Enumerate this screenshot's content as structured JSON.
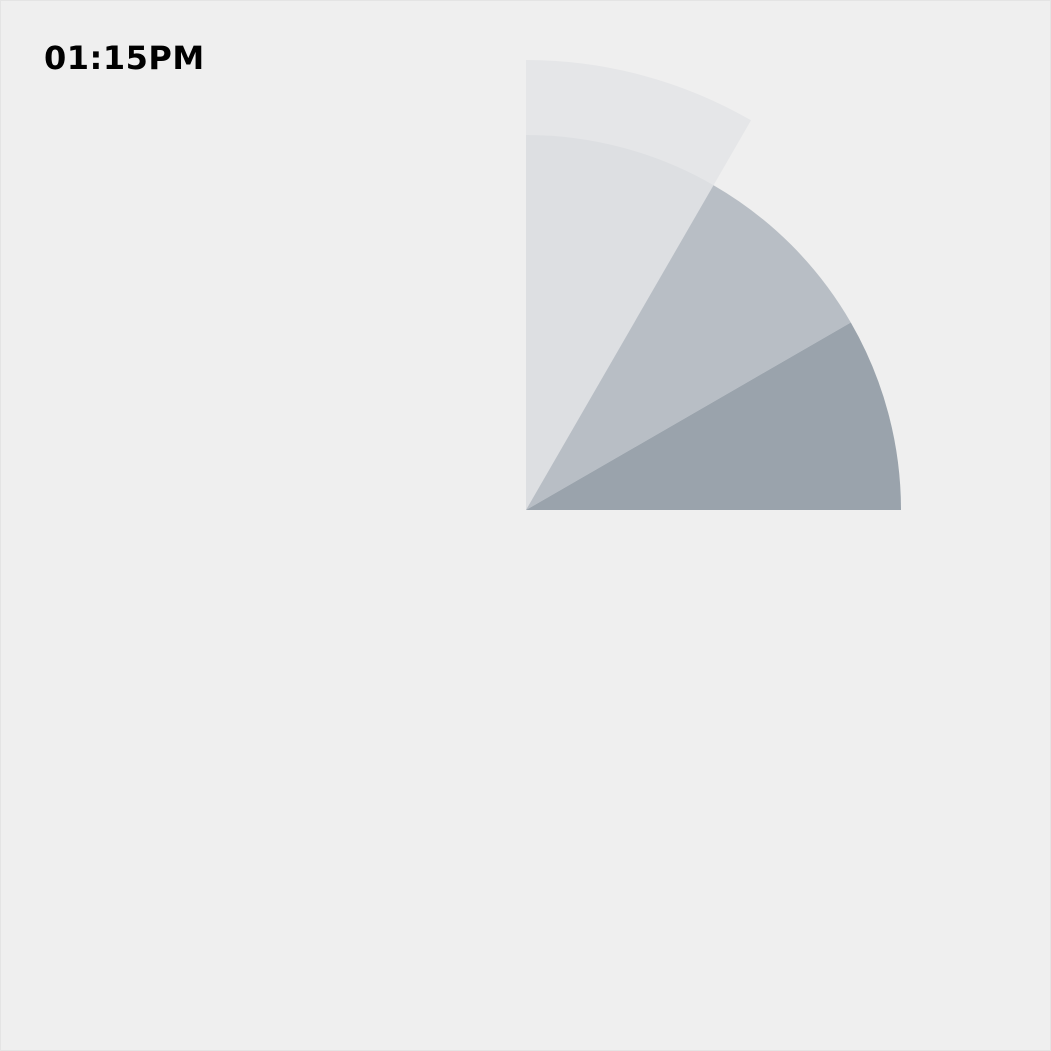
{
  "clock": {
    "time_text": "01:15PM",
    "hours": 1,
    "minutes": 15,
    "period": "PM"
  },
  "colors": {
    "background": "#efefef",
    "time_text": "#000000",
    "second_wedge": "#e5e6e8",
    "hour_wedge": "#dddfe2",
    "minute_wedge": "#b8bec5",
    "quarter_wedge": "#9aa3ac"
  }
}
